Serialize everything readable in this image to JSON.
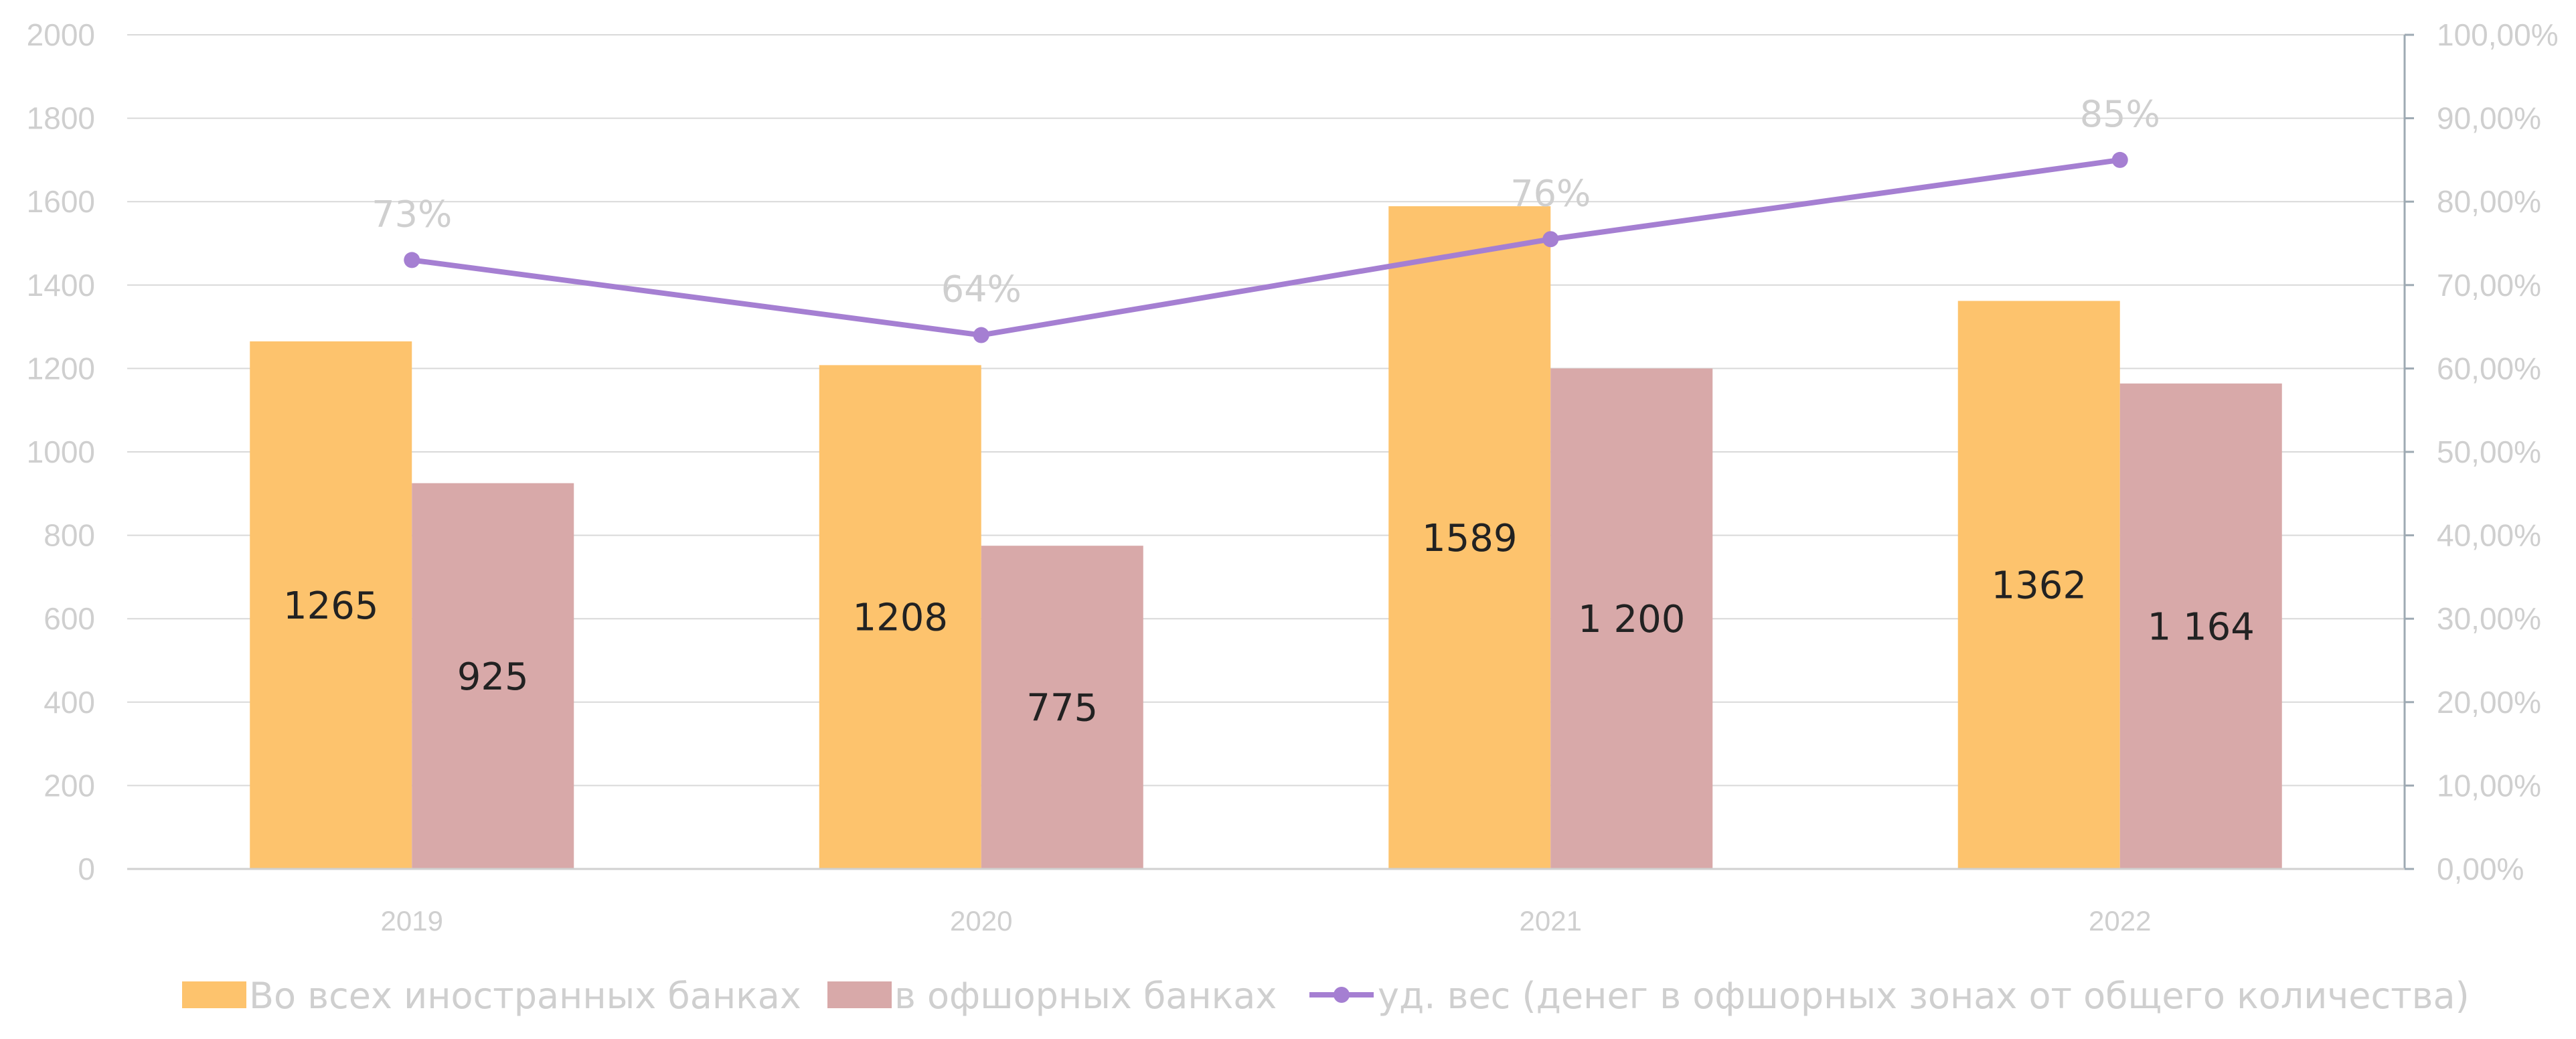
{
  "chart_data": {
    "type": "bar",
    "categories": [
      "2019",
      "2020",
      "2021",
      "2022"
    ],
    "series": [
      {
        "name": "Во всех иностранных банках",
        "type": "bar",
        "axis": "left",
        "color": "#fdc36d",
        "values": [
          1265,
          1208,
          1589,
          1362
        ],
        "labels": [
          "1265",
          "1208",
          "1589",
          "1362"
        ]
      },
      {
        "name": "в офшорных банках",
        "type": "bar",
        "axis": "left",
        "color": "#d8a9a9",
        "values": [
          925,
          775,
          1200,
          1164
        ],
        "labels": [
          "925",
          "775",
          "1 200",
          "1 164"
        ]
      },
      {
        "name": "уд. вес (денег в офшорных зонах от общего количества)",
        "type": "line",
        "axis": "right",
        "color": "#a57fd2",
        "values": [
          0.73,
          0.64,
          0.755,
          0.85
        ],
        "labels": [
          "73%",
          "64%",
          "76%",
          "85%"
        ]
      }
    ],
    "ylim": [
      0,
      2000
    ],
    "yticks": [
      "0",
      "200",
      "400",
      "600",
      "800",
      "1000",
      "1200",
      "1400",
      "1600",
      "1800",
      "2000"
    ],
    "y2lim": [
      0,
      1
    ],
    "y2ticks": [
      "0,00%",
      "10,00%",
      "20,00%",
      "30,00%",
      "40,00%",
      "50,00%",
      "60,00%",
      "70,00%",
      "80,00%",
      "90,00%",
      "100,00%"
    ],
    "grid": true,
    "legend_position": "bottom",
    "title": "",
    "xlabel": "",
    "ylabel": "",
    "y2label": ""
  }
}
